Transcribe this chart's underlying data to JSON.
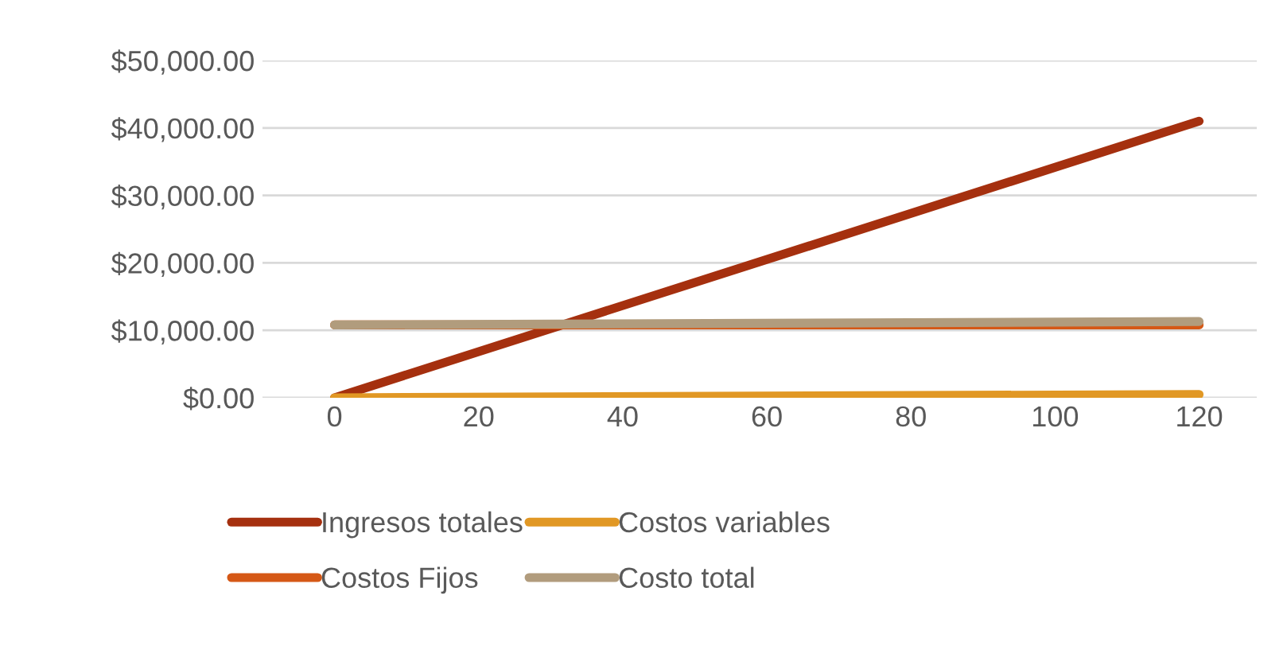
{
  "chart_data": {
    "type": "line",
    "x": [
      0,
      120
    ],
    "series": [
      {
        "name": "Ingresos totales",
        "color": "#a5300f",
        "values": [
          0,
          41000
        ]
      },
      {
        "name": "Costos Fijos",
        "color": "#d55816",
        "values": [
          10800,
          10800
        ]
      },
      {
        "name": "Costos variables",
        "color": "#e19825",
        "values": [
          0,
          500
        ]
      },
      {
        "name": "Costo total",
        "color": "#b19c7d",
        "values": [
          10800,
          11300
        ]
      }
    ],
    "xlim": [
      -10,
      128
    ],
    "xticks": [
      0,
      20,
      40,
      60,
      80,
      100,
      120
    ],
    "ylim": [
      0,
      50000
    ],
    "yticks": [
      {
        "value": 0,
        "label": "$0.00"
      },
      {
        "value": 10000,
        "label": "$10,000.00"
      },
      {
        "value": 20000,
        "label": "$20,000.00"
      },
      {
        "value": 30000,
        "label": "$30,000.00"
      },
      {
        "value": 40000,
        "label": "$40,000.00"
      },
      {
        "value": 50000,
        "label": "$50,000.00"
      }
    ],
    "grid": "y",
    "legend": "bottom",
    "marker": "none",
    "line_style": "solid"
  }
}
